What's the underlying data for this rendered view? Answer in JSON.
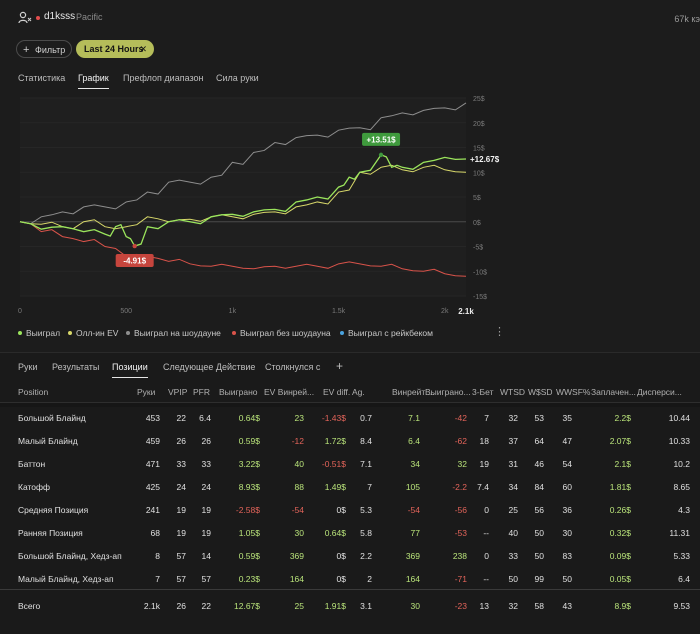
{
  "header": {
    "username": "d1ksss",
    "region": "Pacific",
    "right_count": "67k кэ"
  },
  "filters": {
    "add_filter_label": "Фильтр",
    "time_chip_label": "Last 24 Hours"
  },
  "top_tabs": [
    "Статистика",
    "График",
    "Префлоп диапазон",
    "Сила руки"
  ],
  "top_tabs_active": 1,
  "chart_data": {
    "type": "line",
    "xlim": [
      0,
      2100
    ],
    "ylim": [
      -15,
      25
    ],
    "x_ticks": [
      "0",
      "500",
      "1k",
      "1.5k",
      "2k"
    ],
    "x_end_label": "2.1k",
    "y_ticks": [
      "25$",
      "20$",
      "15$",
      "10$",
      "5$",
      "0$",
      "-5$",
      "-10$",
      "-15$"
    ],
    "y_tick_values": [
      25,
      20,
      15,
      10,
      5,
      0,
      -5,
      -10,
      -15
    ],
    "annotations": [
      {
        "label": "+13.51$",
        "x": 1700,
        "y": 13.51,
        "color": "#3f9a3d"
      },
      {
        "label": "-4.91$",
        "x": 540,
        "y": -4.91,
        "color": "#c6453d"
      }
    ],
    "end_label": "+12.67$",
    "series": [
      {
        "name": "Выиграл",
        "color": "#9be55c",
        "x": [
          0,
          100,
          200,
          300,
          400,
          450,
          500,
          540,
          600,
          700,
          800,
          900,
          1000,
          1100,
          1200,
          1300,
          1400,
          1500,
          1550,
          1600,
          1700,
          1750,
          1800,
          1900,
          2000,
          2100
        ],
        "y": [
          0,
          -1.5,
          -1,
          -2,
          -2.5,
          -1,
          -3,
          -4.91,
          -1,
          0,
          0,
          1,
          1.5,
          2,
          2.5,
          4,
          5,
          7,
          9,
          10,
          13.51,
          11,
          11,
          12,
          13,
          12.67
        ]
      },
      {
        "name": "Олл-ин EV",
        "color": "#d8d86a",
        "x": [
          0,
          100,
          200,
          300,
          400,
          500,
          600,
          700,
          800,
          900,
          1000,
          1100,
          1200,
          1300,
          1400,
          1500,
          1600,
          1700,
          1800,
          1900,
          2000,
          2100
        ],
        "y": [
          0,
          -0.5,
          -1,
          0,
          -1,
          -1,
          1,
          0,
          0.5,
          1,
          1,
          1.5,
          2,
          3,
          4,
          6,
          10,
          11,
          10.5,
          11,
          10.5,
          10
        ]
      },
      {
        "name": "Выиграл на шоудауне",
        "color": "#8e8e8e",
        "x": [
          0,
          100,
          200,
          300,
          400,
          500,
          600,
          700,
          800,
          900,
          1000,
          1100,
          1200,
          1300,
          1400,
          1500,
          1600,
          1700,
          1800,
          1900,
          2000,
          2100
        ],
        "y": [
          0,
          1,
          2,
          3,
          3,
          4,
          6,
          8,
          8,
          9,
          12,
          14,
          16,
          17,
          17.5,
          18.5,
          19,
          21,
          22,
          22.5,
          23,
          24
        ]
      },
      {
        "name": "Выиграл без шоудауна",
        "color": "#d9534a",
        "x": [
          0,
          100,
          200,
          300,
          400,
          500,
          600,
          700,
          800,
          900,
          1000,
          1100,
          1200,
          1300,
          1400,
          1500,
          1600,
          1700,
          1800,
          1900,
          2000,
          2100
        ],
        "y": [
          0,
          -2,
          -3,
          -4,
          -5,
          -7,
          -7,
          -8,
          -8.5,
          -9,
          -9,
          -9.5,
          -9,
          -9,
          -9,
          -8.5,
          -8.5,
          -9,
          -9.5,
          -10,
          -10.5,
          -11
        ]
      },
      {
        "name": "Выиграл с рейкбеком",
        "color": "#4aa3df",
        "x": [],
        "y": []
      }
    ]
  },
  "bottom_tabs": [
    "Руки",
    "Результаты",
    "Позиции",
    "Следующее Действие",
    "Столкнулся с"
  ],
  "bottom_tabs_active": 2,
  "table": {
    "columns": [
      "Position",
      "Руки",
      "VPIP",
      "PFR",
      "Выиграно",
      "EV Винрей...",
      "EV diff.",
      "Ag.",
      "Винрейт ...",
      "Выиграно...",
      "3-Бет",
      "WTSD",
      "W$SD",
      "WWSF%",
      "Заплачен...",
      "Дисперси..."
    ],
    "rows": [
      [
        "Большой Блайнд",
        "453",
        "22",
        "6.4",
        "0.64$",
        "23",
        "-1.43$",
        "0.7",
        "7.1",
        "-42",
        "7",
        "32",
        "53",
        "35",
        "2.2$",
        "10.44"
      ],
      [
        "Малый Блайнд",
        "459",
        "26",
        "26",
        "0.59$",
        "-12",
        "1.72$",
        "8.4",
        "6.4",
        "-62",
        "18",
        "37",
        "64",
        "47",
        "2.07$",
        "10.33"
      ],
      [
        "Баттон",
        "471",
        "33",
        "33",
        "3.22$",
        "40",
        "-0.51$",
        "7.1",
        "34",
        "32",
        "19",
        "31",
        "46",
        "54",
        "2.1$",
        "10.2"
      ],
      [
        "Катофф",
        "425",
        "24",
        "24",
        "8.93$",
        "88",
        "1.49$",
        "7",
        "105",
        "-2.2",
        "7.4",
        "34",
        "84",
        "60",
        "1.81$",
        "8.65"
      ],
      [
        "Средняя Позиция",
        "241",
        "19",
        "19",
        "-2.58$",
        "-54",
        "0$",
        "5.3",
        "-54",
        "-56",
        "0",
        "25",
        "56",
        "36",
        "0.26$",
        "4.3"
      ],
      [
        "Ранняя Позиция",
        "68",
        "19",
        "19",
        "1.05$",
        "30",
        "0.64$",
        "5.8",
        "77",
        "-53",
        "--",
        "40",
        "50",
        "30",
        "0.32$",
        "11.31"
      ],
      [
        "Большой Блайнд, Хедз-ап",
        "8",
        "57",
        "14",
        "0.59$",
        "369",
        "0$",
        "2.2",
        "369",
        "238",
        "0",
        "33",
        "50",
        "83",
        "0.09$",
        "5.33"
      ],
      [
        "Малый Блайнд, Хедз-ап",
        "7",
        "57",
        "57",
        "0.23$",
        "164",
        "0$",
        "2",
        "164",
        "-71",
        "--",
        "50",
        "99",
        "50",
        "0.05$",
        "6.4"
      ]
    ],
    "total": [
      "Всего",
      "2.1k",
      "26",
      "22",
      "12.67$",
      "25",
      "1.91$",
      "3.1",
      "30",
      "-23",
      "13",
      "32",
      "58",
      "43",
      "8.9$",
      "9.53"
    ]
  },
  "colors": {
    "positive": "#b9e37a",
    "negative": "#e3645a",
    "accent_chip": "#b5bd5a"
  }
}
